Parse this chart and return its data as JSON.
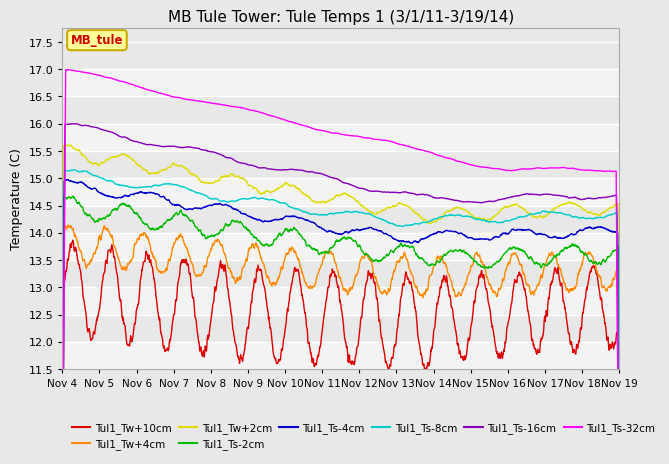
{
  "title": "MB Tule Tower: Tule Temps 1 (3/1/11-3/19/14)",
  "ylabel": "Temperature (C)",
  "ylim": [
    11.5,
    17.75
  ],
  "yticks": [
    11.5,
    12.0,
    12.5,
    13.0,
    13.5,
    14.0,
    14.5,
    15.0,
    15.5,
    16.0,
    16.5,
    17.0,
    17.5
  ],
  "bg_color": "#e8e8e8",
  "plot_bg": "#e8e8e8",
  "legend_box_color": "#ffff99",
  "legend_box_edge": "#ccaa00",
  "series": [
    {
      "label": "Tul1_Tw+10cm",
      "color": "#dd0000"
    },
    {
      "label": "Tul1_Tw+4cm",
      "color": "#ff8800"
    },
    {
      "label": "Tul1_Tw+2cm",
      "color": "#dddd00"
    },
    {
      "label": "Tul1_Ts-2cm",
      "color": "#00bb00"
    },
    {
      "label": "Tul1_Ts-4cm",
      "color": "#0000cc"
    },
    {
      "label": "Tul1_Ts-8cm",
      "color": "#00cccc"
    },
    {
      "label": "Tul1_Ts-16cm",
      "color": "#8800bb"
    },
    {
      "label": "Tul1_Ts-32cm",
      "color": "#ff00ff"
    }
  ],
  "x_labels": [
    "Nov 4",
    "Nov 5",
    "Nov 6",
    "Nov 7",
    "Nov 8",
    "Nov 9",
    "Nov 10",
    "Nov 11",
    "Nov 12",
    "Nov 13",
    "Nov 14",
    "Nov 15",
    "Nov 16",
    "Nov 17",
    "Nov 18",
    "Nov 19"
  ]
}
